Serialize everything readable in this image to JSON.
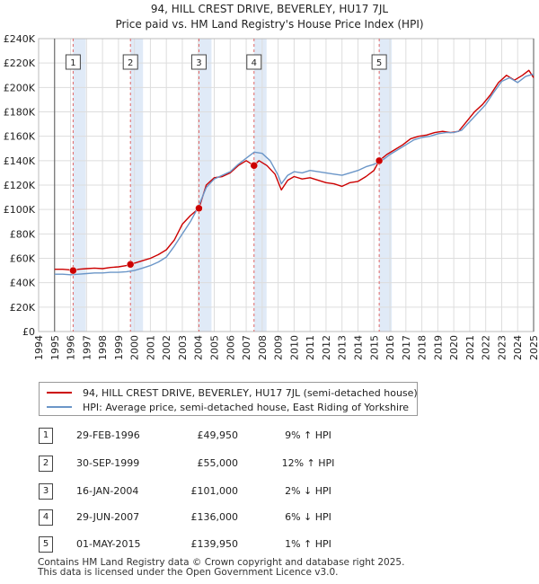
{
  "chart_data": {
    "type": "line",
    "title": [
      "94, HILL CREST DRIVE, BEVERLEY, HU17 7JL",
      "Price paid vs. HM Land Registry's House Price Index (HPI)"
    ],
    "xlabel": "",
    "ylabel": "",
    "xlim": [
      1994,
      2025
    ],
    "ylim": [
      0,
      240000
    ],
    "ytick_values": [
      0,
      20000,
      40000,
      60000,
      80000,
      100000,
      120000,
      140000,
      160000,
      180000,
      200000,
      220000,
      240000
    ],
    "ytick_labels": [
      "£0",
      "£20K",
      "£40K",
      "£60K",
      "£80K",
      "£100K",
      "£120K",
      "£140K",
      "£160K",
      "£180K",
      "£200K",
      "£220K",
      "£240K"
    ],
    "xtick_labels": [
      "1994",
      "1995",
      "1996",
      "1997",
      "1998",
      "1999",
      "2000",
      "2001",
      "2002",
      "2003",
      "2004",
      "2005",
      "2006",
      "2007",
      "2008",
      "2009",
      "2010",
      "2011",
      "2012",
      "2013",
      "2014",
      "2015",
      "2016",
      "2017",
      "2018",
      "2019",
      "2020",
      "2021",
      "2022",
      "2023",
      "2024",
      "2025"
    ],
    "grid": true,
    "colors": {
      "property": "#cc0000",
      "hpi": "#6b96c8",
      "marker_line": "#e06666",
      "shade": "#dde8f6",
      "grid": "#dddddd",
      "axis": "#333333"
    },
    "series": [
      {
        "name": "94, HILL CREST DRIVE, BEVERLEY, HU17 7JL (semi-detached house)",
        "color": "#cc0000",
        "x": [
          1995.0,
          1995.5,
          1996.0,
          1996.16,
          1996.5,
          1997.0,
          1997.5,
          1998.0,
          1998.5,
          1999.0,
          1999.5,
          1999.75,
          2000.0,
          2000.5,
          2001.0,
          2001.5,
          2002.0,
          2002.5,
          2003.0,
          2003.5,
          2004.04,
          2004.5,
          2005.0,
          2005.5,
          2006.0,
          2006.5,
          2007.0,
          2007.49,
          2007.8,
          2008.3,
          2008.8,
          2009.2,
          2009.6,
          2010.0,
          2010.5,
          2011.0,
          2011.5,
          2012.0,
          2012.5,
          2013.0,
          2013.5,
          2014.0,
          2014.5,
          2015.0,
          2015.33,
          2015.8,
          2016.3,
          2016.8,
          2017.3,
          2017.8,
          2018.3,
          2018.8,
          2019.3,
          2019.8,
          2020.3,
          2020.8,
          2021.3,
          2021.8,
          2022.3,
          2022.8,
          2023.3,
          2023.8,
          2024.3,
          2024.7,
          2025.0
        ],
        "y": [
          51000,
          51000,
          50500,
          49950,
          51000,
          51500,
          52000,
          51500,
          52500,
          53000,
          54000,
          55000,
          56000,
          58000,
          60000,
          63000,
          67000,
          75000,
          88000,
          95000,
          101000,
          120000,
          126000,
          127000,
          130000,
          136000,
          140000,
          136000,
          140000,
          136000,
          129000,
          116000,
          124000,
          127000,
          125000,
          126000,
          124000,
          122000,
          121000,
          119000,
          122000,
          123000,
          127000,
          132000,
          139950,
          145000,
          149000,
          153000,
          158000,
          160000,
          161000,
          163000,
          164000,
          163000,
          164000,
          172000,
          180000,
          186000,
          194000,
          204000,
          210000,
          206000,
          210000,
          214000,
          208000
        ]
      },
      {
        "name": "HPI: Average price, semi-detached house, East Riding of Yorkshire",
        "color": "#6b96c8",
        "x": [
          1995.0,
          1995.5,
          1996.0,
          1996.5,
          1997.0,
          1997.5,
          1998.0,
          1998.5,
          1999.0,
          1999.5,
          2000.0,
          2000.5,
          2001.0,
          2001.5,
          2002.0,
          2002.5,
          2003.0,
          2003.5,
          2004.0,
          2004.5,
          2005.0,
          2005.5,
          2006.0,
          2006.5,
          2007.0,
          2007.5,
          2008.0,
          2008.5,
          2009.0,
          2009.2,
          2009.6,
          2010.0,
          2010.5,
          2011.0,
          2011.5,
          2012.0,
          2012.5,
          2013.0,
          2013.5,
          2014.0,
          2014.5,
          2015.0,
          2015.5,
          2016.0,
          2016.5,
          2017.0,
          2017.5,
          2018.0,
          2018.5,
          2019.0,
          2019.5,
          2020.0,
          2020.5,
          2021.0,
          2021.5,
          2022.0,
          2022.5,
          2023.0,
          2023.5,
          2024.0,
          2024.5,
          2025.0
        ],
        "y": [
          47000,
          47000,
          46500,
          47000,
          47500,
          48000,
          48000,
          48500,
          48500,
          49000,
          50000,
          52000,
          54000,
          57000,
          61000,
          70000,
          80000,
          90000,
          102000,
          118000,
          125000,
          128000,
          131000,
          137000,
          142000,
          147000,
          146000,
          140000,
          128000,
          121000,
          128000,
          131000,
          130000,
          132000,
          131000,
          130000,
          129000,
          128000,
          130000,
          132000,
          135000,
          137000,
          140000,
          145000,
          149000,
          153000,
          157000,
          159000,
          160000,
          162000,
          163000,
          163000,
          165000,
          172000,
          179000,
          186000,
          196000,
          205000,
          208000,
          204000,
          209000,
          211000
        ]
      }
    ],
    "sales": [
      {
        "n": "1",
        "x": 1996.16,
        "y": 49950
      },
      {
        "n": "2",
        "x": 1999.75,
        "y": 55000
      },
      {
        "n": "3",
        "x": 2004.04,
        "y": 101000
      },
      {
        "n": "4",
        "x": 2007.49,
        "y": 136000
      },
      {
        "n": "5",
        "x": 2015.33,
        "y": 139950
      }
    ]
  },
  "legend": {
    "property_label": "94, HILL CREST DRIVE, BEVERLEY, HU17 7JL (semi-detached house)",
    "hpi_label": "HPI: Average price, semi-detached house, East Riding of Yorkshire"
  },
  "sales_table": [
    {
      "n": "1",
      "date": "29-FEB-1996",
      "price": "£49,950",
      "hpi": "9% ↑ HPI"
    },
    {
      "n": "2",
      "date": "30-SEP-1999",
      "price": "£55,000",
      "hpi": "12% ↑ HPI"
    },
    {
      "n": "3",
      "date": "16-JAN-2004",
      "price": "£101,000",
      "hpi": "2% ↓ HPI"
    },
    {
      "n": "4",
      "date": "29-JUN-2007",
      "price": "£136,000",
      "hpi": "6% ↓ HPI"
    },
    {
      "n": "5",
      "date": "01-MAY-2015",
      "price": "£139,950",
      "hpi": "1% ↑ HPI"
    }
  ],
  "footer": {
    "line1": "Contains HM Land Registry data © Crown copyright and database right 2025.",
    "line2": "This data is licensed under the Open Government Licence v3.0."
  }
}
